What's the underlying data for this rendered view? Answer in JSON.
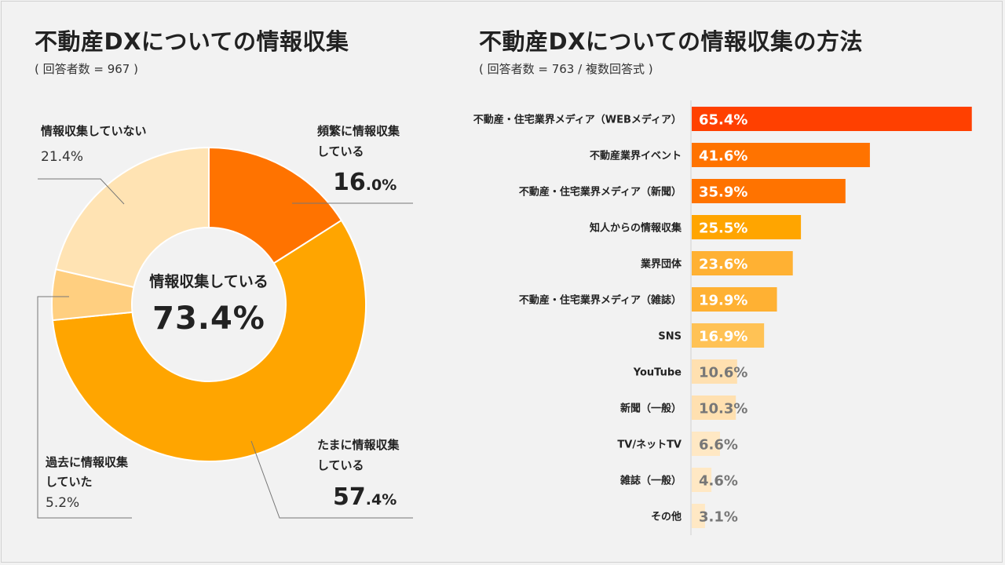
{
  "left": {
    "title": "不動産DXについての情報収集",
    "subtitle": "( 回答者数 = 967 )",
    "center_label": "情報収集している",
    "center_value": "73.4%",
    "labels": {
      "frequent_line1": "頻繁に情報収集",
      "frequent_line2": "している",
      "frequent_pct_main": "16",
      "frequent_pct_dec": ".0%",
      "sometimes_line1": "たまに情報収集",
      "sometimes_line2": "している",
      "sometimes_pct_main": "57",
      "sometimes_pct_dec": ".4%",
      "past_line1": "過去に情報収集",
      "past_line2": "していた",
      "past_pct": "5.2%",
      "not_line1": "情報収集していない",
      "not_pct": "21.4%"
    }
  },
  "right": {
    "title": "不動産DXについての情報収集の方法",
    "subtitle": "( 回答者数 = 763 / 複数回答式 )"
  },
  "chart_data": [
    {
      "type": "pie",
      "variant": "donut",
      "title": "不動産DXについての情報収集",
      "categories": [
        "頻繁に情報収集している",
        "たまに情報収集している",
        "過去に情報収集していた",
        "情報収集していない"
      ],
      "values": [
        16.0,
        57.4,
        5.2,
        21.4
      ],
      "colors": [
        "#ff7300",
        "#ffa500",
        "#ffcf80",
        "#ffe3b3"
      ],
      "unit": "%"
    },
    {
      "type": "bar",
      "orientation": "horizontal",
      "title": "不動産DXについての情報収集の方法",
      "categories": [
        "不動産・住宅業界メディア（WEBメディア）",
        "不動産業界イベント",
        "不動産・住宅業界メディア（新聞）",
        "知人からの情報収集",
        "業界団体",
        "不動産・住宅業界メディア（雑誌）",
        "SNS",
        "YouTube",
        "新聞（一般）",
        "TV/ネットTV",
        "雑誌（一般）",
        "その他"
      ],
      "values": [
        65.4,
        41.6,
        35.9,
        25.5,
        23.6,
        19.9,
        16.9,
        10.6,
        10.3,
        6.6,
        4.6,
        3.1
      ],
      "labels": [
        "65.4%",
        "41.6%",
        "35.9%",
        "25.5%",
        "23.6%",
        "19.9%",
        "16.9%",
        "10.6%",
        "10.3%",
        "6.6%",
        "4.6%",
        "3.1%"
      ],
      "colors": [
        "#ff4000",
        "#ff7300",
        "#ff7300",
        "#ffa500",
        "#ffb133",
        "#ffb133",
        "#ffc255",
        "#ffe0b0",
        "#ffe0b0",
        "#ffe8c4",
        "#ffe8c4",
        "#ffe8c4"
      ],
      "label_colors": [
        "#ffffff",
        "#ffffff",
        "#ffffff",
        "#ffffff",
        "#ffffff",
        "#ffffff",
        "#ffffff",
        "#777777",
        "#777777",
        "#777777",
        "#777777",
        "#777777"
      ],
      "unit": "%",
      "xlim": [
        0,
        66
      ]
    }
  ]
}
